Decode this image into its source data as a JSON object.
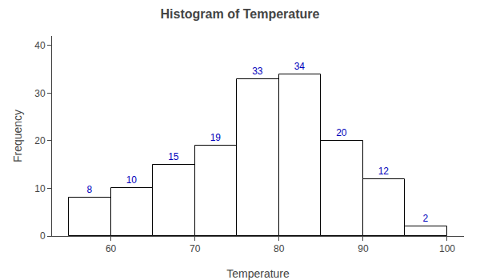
{
  "chart_data": {
    "type": "histogram",
    "title": "Histogram of Temperature",
    "xlabel": "Temperature",
    "ylabel": "Frequency",
    "bins": [
      55,
      60,
      65,
      70,
      75,
      80,
      85,
      90,
      95,
      100
    ],
    "values": [
      8,
      10,
      15,
      19,
      33,
      34,
      20,
      12,
      2
    ],
    "color": "#ffffff",
    "xlim": [
      53,
      102
    ],
    "xticks": [
      60,
      70,
      80,
      90,
      100
    ],
    "ylim": [
      0,
      42
    ],
    "yticks": [
      0,
      10,
      20,
      30,
      40
    ],
    "data_labels": true,
    "grid": false
  }
}
